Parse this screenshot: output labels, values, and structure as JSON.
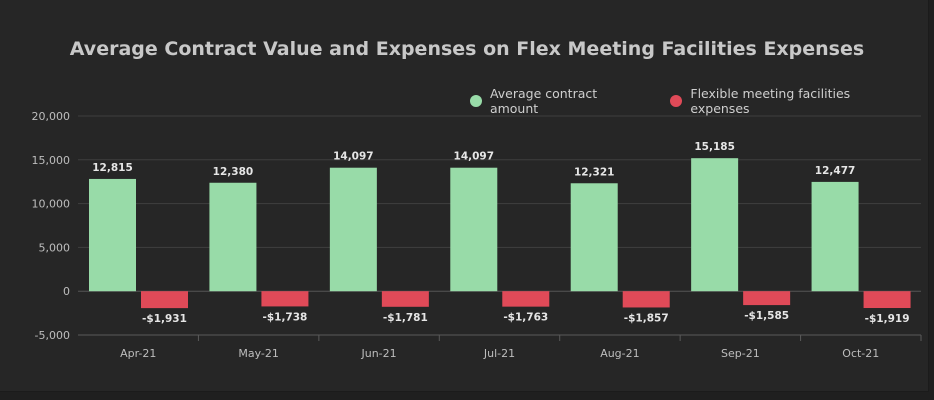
{
  "chart_data": {
    "type": "bar",
    "title": "Average Contract Value and Expenses on Flex Meeting Facilities Expenses",
    "categories": [
      "Apr-21",
      "May-21",
      "Jun-21",
      "Jul-21",
      "Aug-21",
      "Sep-21",
      "Oct-21"
    ],
    "series": [
      {
        "name": "Average contract amount",
        "color": "#98dba8",
        "values": [
          12815,
          12380,
          14097,
          14097,
          12321,
          15185,
          12477
        ],
        "labels": [
          "12,815",
          "12,380",
          "14,097",
          "14,097",
          "12,321",
          "15,185",
          "12,477"
        ]
      },
      {
        "name": "Flexible meeting facilities expenses",
        "color": "#e04a58",
        "values": [
          -1931,
          -1738,
          -1781,
          -1763,
          -1857,
          -1585,
          -1919
        ],
        "labels": [
          "-$1,931",
          "-$1,738",
          "-$1,781",
          "-$1,763",
          "-$1,857",
          "-$1,585",
          "-$1,919"
        ]
      }
    ],
    "ylim": [
      -5000,
      20000
    ],
    "yticks": [
      20000,
      15000,
      10000,
      5000,
      0,
      -5000
    ],
    "ytick_labels": [
      "20,000",
      "15,000",
      "10,000",
      "5,000",
      "0",
      "-5,000"
    ],
    "grid": true,
    "legend_position": "top-right"
  }
}
